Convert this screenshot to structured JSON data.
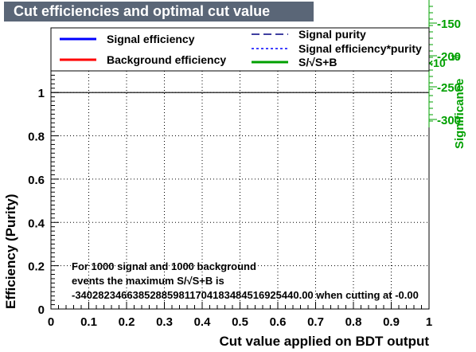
{
  "chart_data": {
    "type": "line",
    "title": "Cut efficiencies and optimal cut value",
    "xlabel": "Cut value applied on BDT output",
    "ylabel": "Efficiency (Purity)",
    "y2label": "Significance",
    "xlim": [
      0,
      1
    ],
    "ylim": [
      0,
      1.1
    ],
    "y2ticks": [
      "-150",
      "-200",
      "-250",
      "-300"
    ],
    "y2exponent": "×10",
    "y2exponent_power": "36",
    "xticks": [
      "0",
      "0.1",
      "0.2",
      "0.3",
      "0.4",
      "0.5",
      "0.6",
      "0.7",
      "0.8",
      "0.9",
      "1"
    ],
    "yticks": [
      "0",
      "0.2",
      "0.4",
      "0.6",
      "0.8",
      "1"
    ],
    "grid": true,
    "legend": {
      "placement": "top",
      "entries": [
        {
          "label": "Signal efficiency",
          "color": "#0000ff",
          "style": "solid"
        },
        {
          "label": "Background efficiency",
          "color": "#ff0000",
          "style": "solid"
        },
        {
          "label": "Signal purity",
          "color": "#000080",
          "style": "dashed"
        },
        {
          "label": "Signal efficiency*purity",
          "color": "#0000ff",
          "style": "dotted"
        },
        {
          "label": "S/√S+B",
          "color": "#00a000",
          "style": "solid"
        }
      ]
    },
    "series": [
      {
        "name": "Signal purity",
        "x": [
          0,
          1
        ],
        "y": [
          1,
          1
        ],
        "color": "#000000"
      }
    ],
    "annotation": [
      "For 1000 signal and 1000 background",
      "events the maximum S/√S+B is",
      "-340282346638528859811704183484516925440.00 when cutting at -0.00"
    ]
  }
}
